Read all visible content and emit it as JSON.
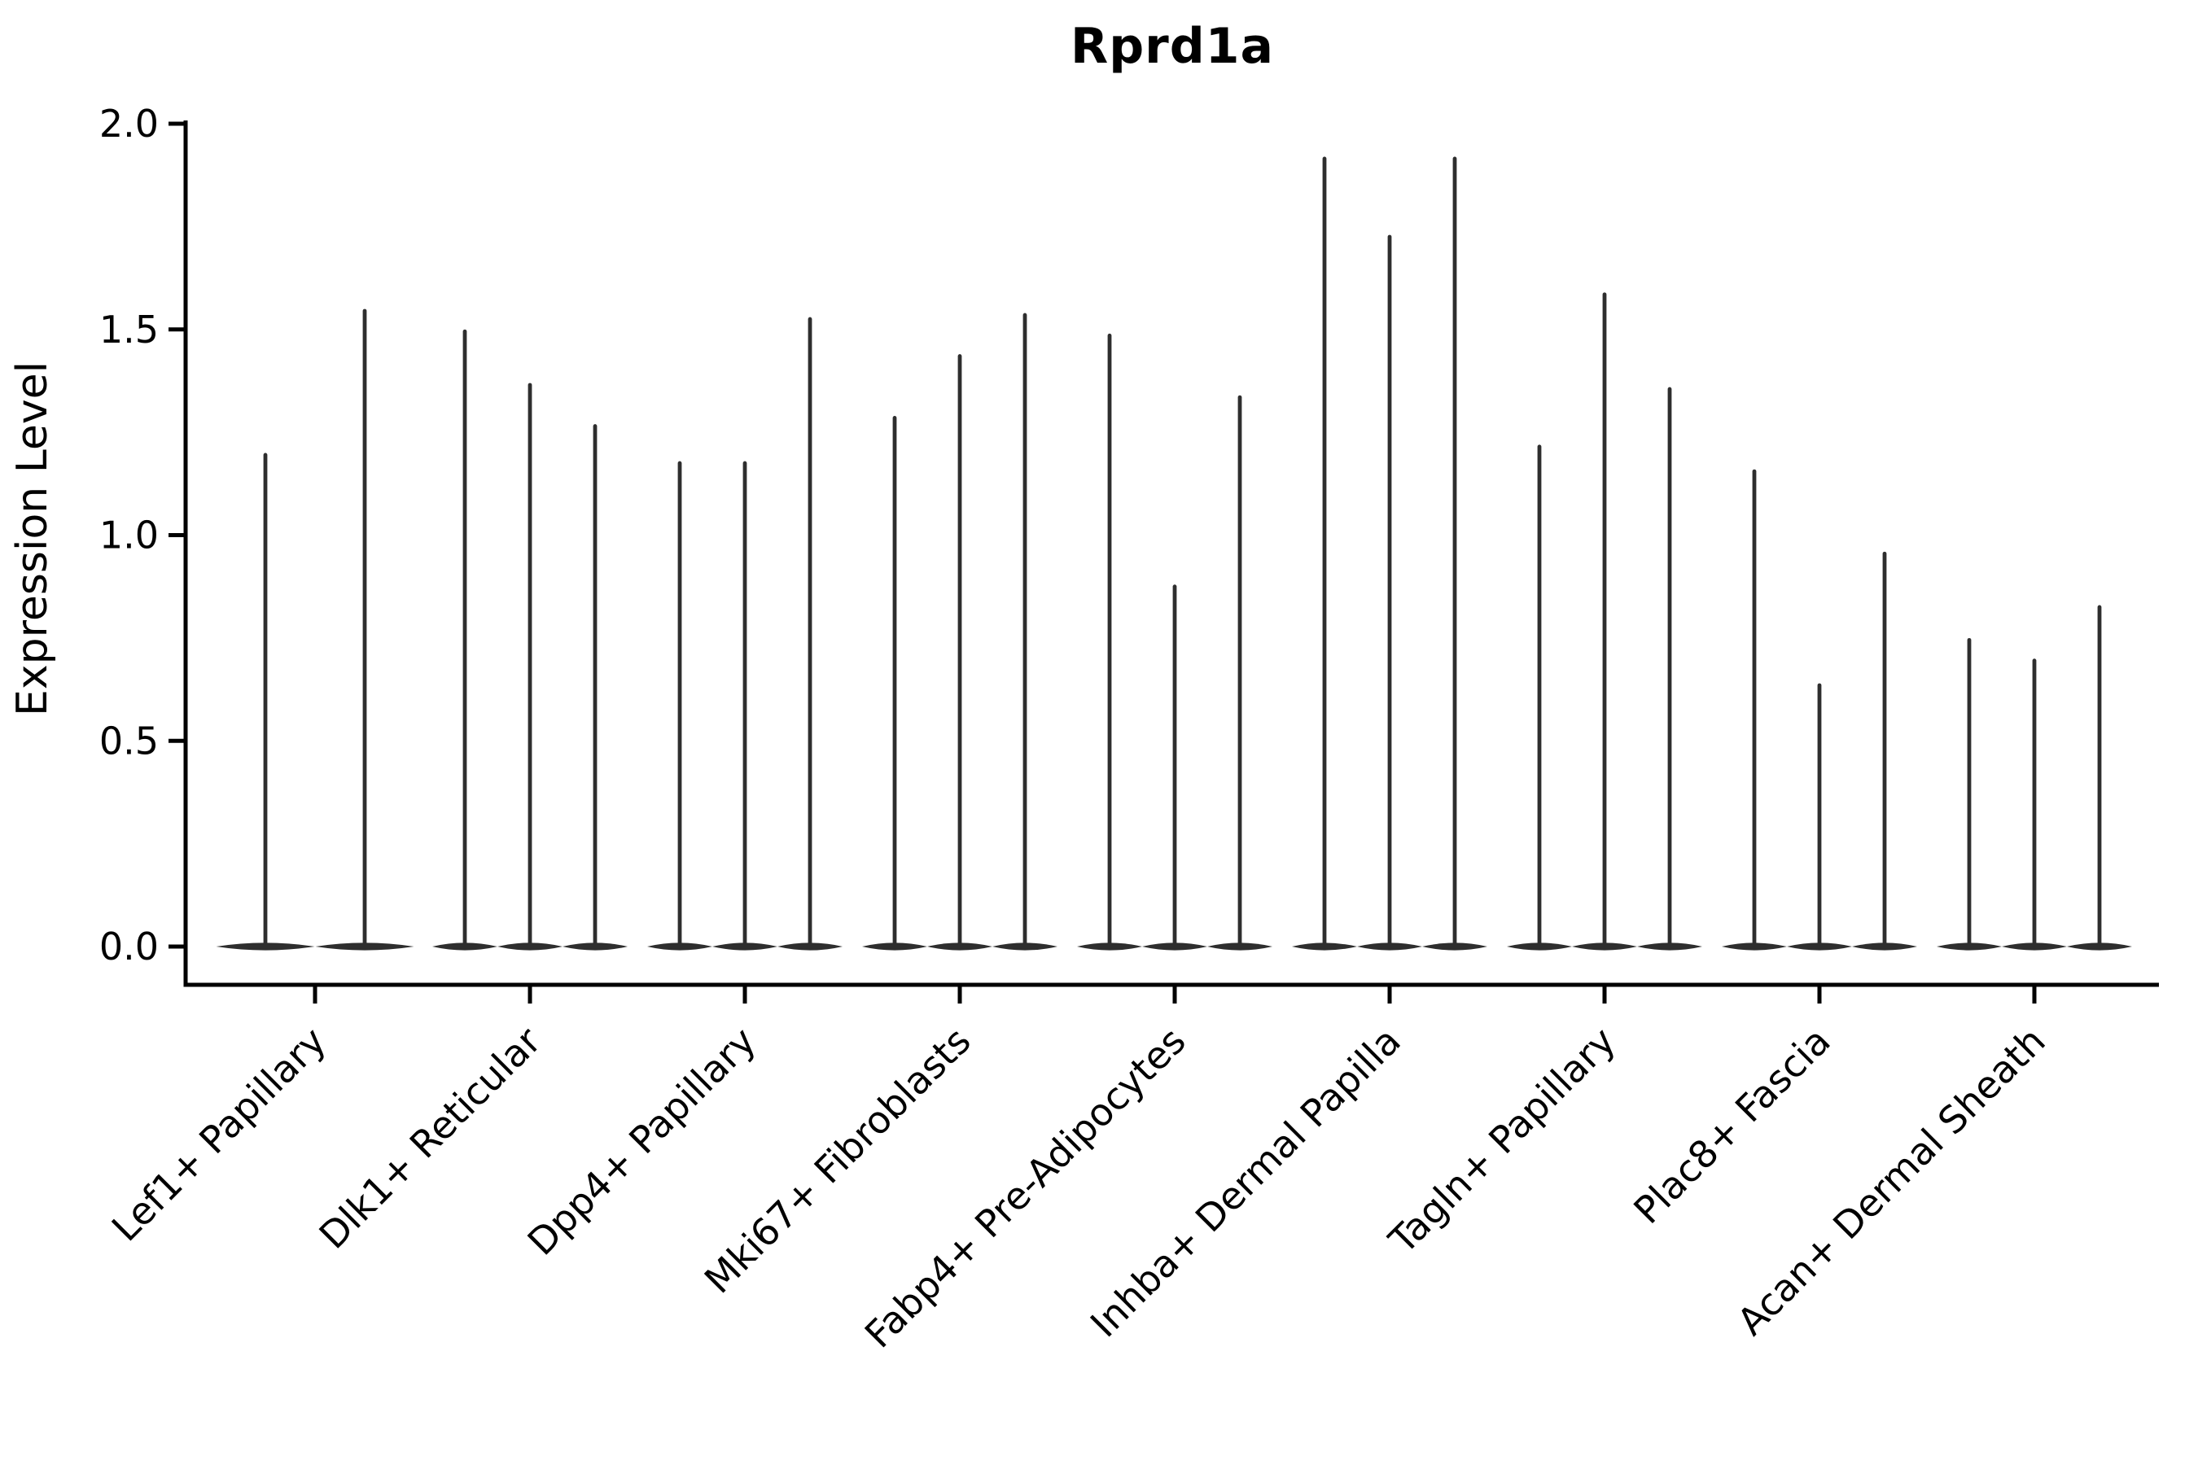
{
  "chart_data": {
    "type": "violin",
    "title": "Rprd1a",
    "ylabel": "Expression Level",
    "xlabel": "",
    "ylim": [
      0.0,
      2.0
    ],
    "grid": false,
    "legend": "none",
    "y_ticks": {
      "labels": [
        "2.0",
        "1.5",
        "1.0",
        "0.5",
        "0.0"
      ],
      "values": [
        2.0,
        1.5,
        1.0,
        0.5,
        0.0
      ]
    },
    "categories": [
      {
        "label": "Lef1+ Papillary",
        "violin_max_expression": [
          1.2,
          1.55
        ]
      },
      {
        "label": "Dlk1+ Reticular",
        "violin_max_expression": [
          1.5,
          1.37,
          1.27
        ]
      },
      {
        "label": "Dpp4+ Papillary",
        "violin_max_expression": [
          1.18,
          1.18,
          1.53
        ]
      },
      {
        "label": "Mki67+ Fibroblasts",
        "violin_max_expression": [
          1.29,
          1.44,
          1.54
        ]
      },
      {
        "label": "Fabp4+ Pre-Adipocytes",
        "violin_max_expression": [
          1.49,
          0.88,
          1.34
        ]
      },
      {
        "label": "Inhba+ Dermal Papilla",
        "violin_max_expression": [
          1.92,
          1.73,
          1.92
        ]
      },
      {
        "label": "Tagln+ Papillary",
        "violin_max_expression": [
          1.22,
          1.59,
          1.36
        ]
      },
      {
        "label": "Plac8+ Fascia",
        "violin_max_expression": [
          1.16,
          0.64,
          0.96
        ]
      },
      {
        "label": "Acan+ Dermal Sheath",
        "violin_max_expression": [
          0.75,
          0.7,
          0.83
        ]
      }
    ],
    "notes": "Each category shows needle-thin violins (density collapsed at 0 with a thin spike up to the max expression). Violin bodies sit on a flat lens at y=0.",
    "colors": {
      "violin": "#2e2e2e",
      "axis": "#000000",
      "text": "#000000",
      "background": "#ffffff"
    }
  }
}
